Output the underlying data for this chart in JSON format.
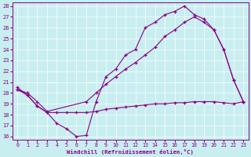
{
  "xlabel": "Windchill (Refroidissement éolien,°C)",
  "xlim": [
    0,
    23
  ],
  "ylim": [
    16,
    28
  ],
  "xticks": [
    0,
    1,
    2,
    3,
    4,
    5,
    6,
    7,
    8,
    9,
    10,
    11,
    12,
    13,
    14,
    15,
    16,
    17,
    18,
    19,
    20,
    21,
    22,
    23
  ],
  "yticks": [
    16,
    17,
    18,
    19,
    20,
    21,
    22,
    23,
    24,
    25,
    26,
    27,
    28
  ],
  "bg_color": "#c8eef0",
  "line_color": "#880088",
  "line1": [
    [
      0,
      20.5
    ],
    [
      1,
      19.8
    ],
    [
      2,
      18.8
    ],
    [
      3,
      18.2
    ],
    [
      4,
      17.2
    ],
    [
      5,
      16.7
    ],
    [
      6,
      16.0
    ],
    [
      7,
      16.1
    ],
    [
      8,
      19.2
    ],
    [
      9,
      21.5
    ],
    [
      10,
      22.2
    ],
    [
      11,
      23.5
    ],
    [
      12,
      24.0
    ],
    [
      13,
      26.0
    ],
    [
      14,
      26.5
    ],
    [
      15,
      27.2
    ],
    [
      16,
      27.5
    ],
    [
      17,
      28.0
    ],
    [
      18,
      27.2
    ],
    [
      19,
      26.8
    ],
    [
      20,
      25.8
    ],
    [
      21,
      24.0
    ],
    [
      22,
      21.2
    ],
    [
      23,
      19.2
    ]
  ],
  "line2": [
    [
      0,
      20.3
    ],
    [
      1,
      20.0
    ],
    [
      2,
      19.2
    ],
    [
      3,
      18.3
    ],
    [
      7,
      19.2
    ],
    [
      8,
      20.0
    ],
    [
      9,
      20.8
    ],
    [
      10,
      21.5
    ],
    [
      11,
      22.2
    ],
    [
      12,
      22.8
    ],
    [
      13,
      23.5
    ],
    [
      14,
      24.2
    ],
    [
      15,
      25.2
    ],
    [
      16,
      25.8
    ],
    [
      17,
      26.5
    ],
    [
      18,
      27.0
    ],
    [
      19,
      26.5
    ],
    [
      20,
      25.8
    ],
    [
      21,
      24.0
    ],
    [
      22,
      21.2
    ],
    [
      23,
      19.2
    ]
  ],
  "line3": [
    [
      0,
      20.3
    ],
    [
      1,
      19.8
    ],
    [
      2,
      18.8
    ],
    [
      3,
      18.2
    ],
    [
      4,
      18.2
    ],
    [
      5,
      18.2
    ],
    [
      6,
      18.2
    ],
    [
      7,
      18.2
    ],
    [
      8,
      18.3
    ],
    [
      9,
      18.5
    ],
    [
      10,
      18.6
    ],
    [
      11,
      18.7
    ],
    [
      12,
      18.8
    ],
    [
      13,
      18.9
    ],
    [
      14,
      19.0
    ],
    [
      15,
      19.0
    ],
    [
      16,
      19.1
    ],
    [
      17,
      19.1
    ],
    [
      18,
      19.2
    ],
    [
      19,
      19.2
    ],
    [
      20,
      19.2
    ],
    [
      21,
      19.1
    ],
    [
      22,
      19.0
    ],
    [
      23,
      19.2
    ]
  ]
}
